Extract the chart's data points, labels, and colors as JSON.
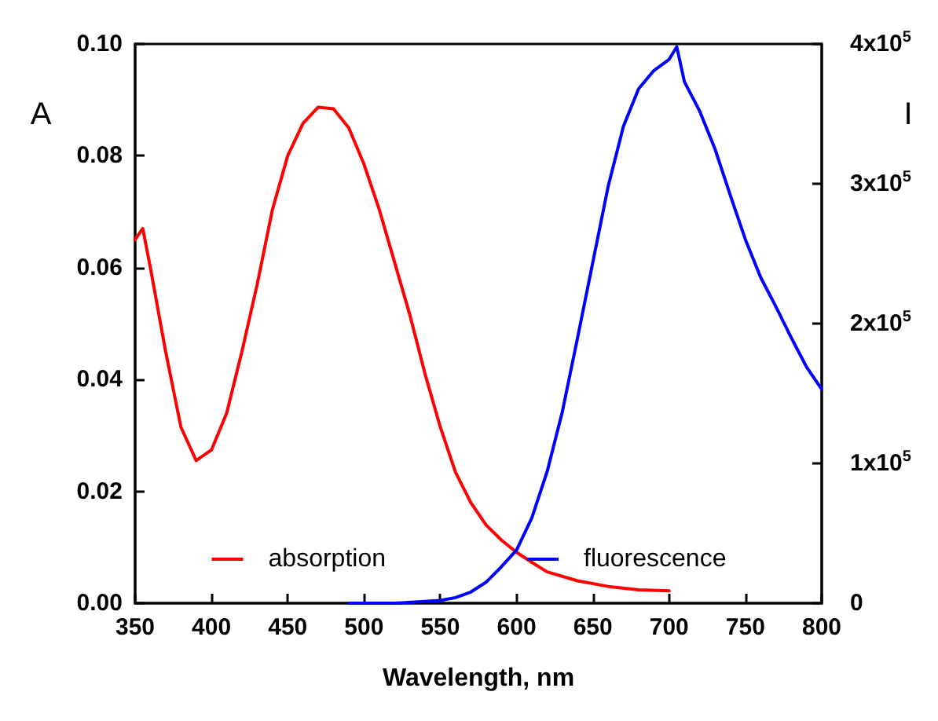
{
  "chart_data": {
    "type": "line",
    "xlabel": "Wavelength, nm",
    "ylabel": "A",
    "y2label": "I",
    "xlim": [
      350,
      800
    ],
    "xticks": [
      350,
      400,
      450,
      500,
      550,
      600,
      650,
      700,
      750,
      800
    ],
    "ylim": [
      0,
      0.1
    ],
    "yticks": [
      {
        "value": 0,
        "label": "0.00"
      },
      {
        "value": 0.02,
        "label": "0.02"
      },
      {
        "value": 0.04,
        "label": "0.04"
      },
      {
        "value": 0.06,
        "label": "0.06"
      },
      {
        "value": 0.08,
        "label": "0.08"
      },
      {
        "value": 0.1,
        "label": "0.10"
      }
    ],
    "y2lim": [
      0,
      400000
    ],
    "y2ticks": [
      0,
      {
        "value": 100000,
        "label": "1x10$^{5}$"
      },
      {
        "value": 200000,
        "label": "2x10$^{5}$"
      },
      {
        "value": 300000,
        "label": "3x10$^{5}$"
      },
      {
        "value": 400000,
        "label": "4x10$^{5}$"
      }
    ],
    "grid": false,
    "legend": "bottom",
    "marker": "none",
    "line_style": "solid",
    "series": [
      {
        "name": "absorption",
        "color": "#ff0000",
        "x": [
          350,
          355,
          360,
          370,
          380,
          390,
          400,
          410,
          420,
          430,
          440,
          450,
          460,
          470,
          480,
          490,
          500,
          510,
          520,
          530,
          540,
          550,
          560,
          570,
          580,
          590,
          600,
          610,
          620,
          640,
          660,
          680,
          700
        ],
        "values": [
          0.065,
          0.067,
          0.06,
          0.045,
          0.0315,
          0.0255,
          0.0274,
          0.034,
          0.045,
          0.057,
          0.0704,
          0.08,
          0.0858,
          0.0887,
          0.0884,
          0.085,
          0.0785,
          0.0704,
          0.061,
          0.0516,
          0.041,
          0.0315,
          0.0234,
          0.018,
          0.014,
          0.0113,
          0.0091,
          0.0073,
          0.0056,
          0.004,
          0.003,
          0.0024,
          0.0022
        ]
      },
      {
        "name": "fluorescence",
        "color": "#0000ff",
        "axis": "y2",
        "x": [
          490,
          520,
          550,
          560,
          570,
          580,
          590,
          600,
          610,
          620,
          630,
          640,
          650,
          660,
          670,
          680,
          690,
          700,
          705,
          710,
          720,
          730,
          740,
          750,
          760,
          770,
          780,
          790,
          800
        ],
        "values": [
          0,
          0,
          2000,
          4000,
          8000,
          15000,
          26000,
          38000,
          61000,
          94000,
          137000,
          190000,
          244000,
          298000,
          341000,
          368000,
          381000,
          389000,
          398000,
          373000,
          352000,
          325000,
          292000,
          260000,
          233000,
          212000,
          190000,
          169000,
          153000
        ]
      }
    ]
  }
}
